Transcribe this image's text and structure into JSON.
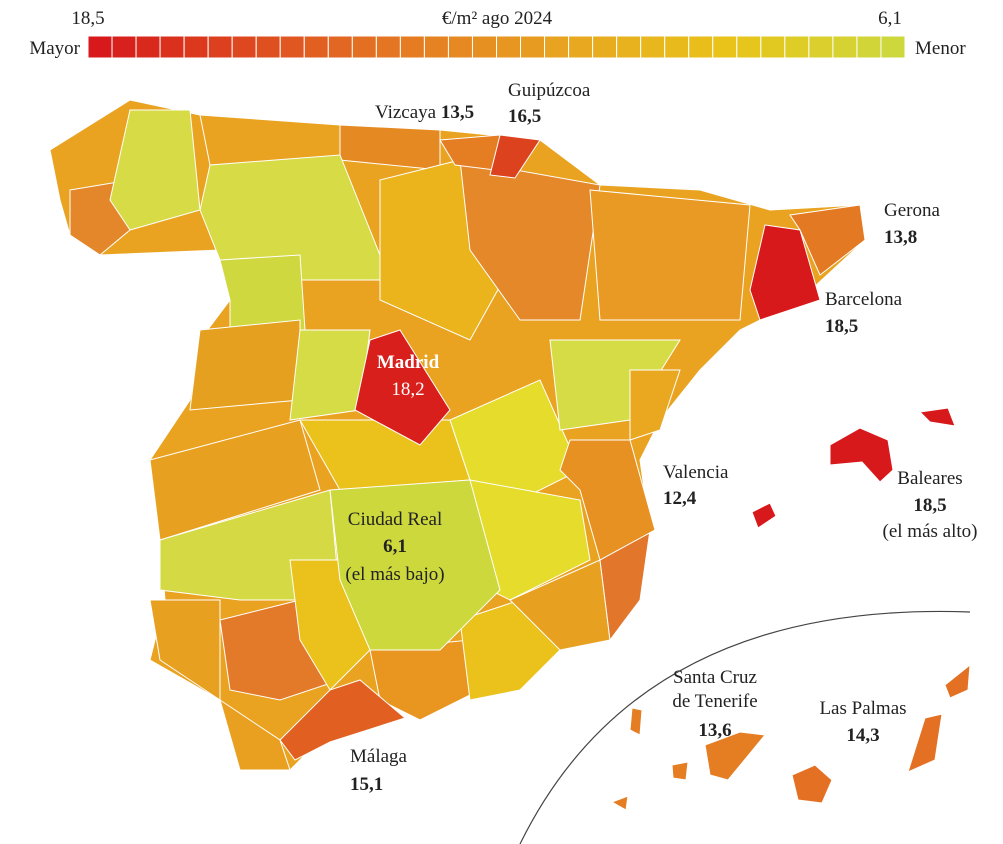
{
  "legend": {
    "title": "€/m² ago 2024",
    "max": 18.5,
    "min": 6.1,
    "max_value_label": "18,5",
    "min_value_label": "6,1",
    "max_label": "Mayor",
    "min_label": "Menor"
  },
  "regions": [
    {
      "name": "Vizcaya",
      "value": 13.5,
      "value_label": "13,5"
    },
    {
      "name": "Guipúzcoa",
      "value": 16.5,
      "value_label": "16,5"
    },
    {
      "name": "Gerona",
      "value": 13.8,
      "value_label": "13,8"
    },
    {
      "name": "Barcelona",
      "value": 18.5,
      "value_label": "18,5"
    },
    {
      "name": "Madrid",
      "value": 18.2,
      "value_label": "18,2"
    },
    {
      "name": "Valencia",
      "value": 12.4,
      "value_label": "12,4"
    },
    {
      "name": "Baleares",
      "value": 18.5,
      "value_label": "18,5",
      "note": "(el más alto)"
    },
    {
      "name": "Ciudad Real",
      "value": 6.1,
      "value_label": "6,1",
      "note": "(el más bajo)"
    },
    {
      "name": "Santa Cruz de Tenerife",
      "value": 13.6,
      "value_label": "13,6"
    },
    {
      "name": "Las Palmas",
      "value": 14.3,
      "value_label": "14,3"
    },
    {
      "name": "Málaga",
      "value": 15.1,
      "value_label": "15,1"
    }
  ]
}
